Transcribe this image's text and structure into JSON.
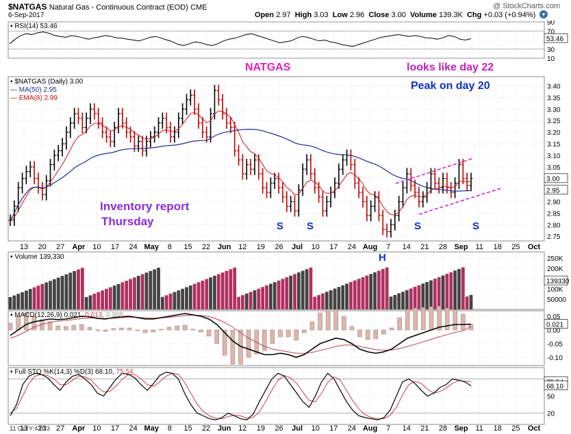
{
  "header": {
    "symbol": "$NATGAS",
    "name": "Natural Gas - Continuous Contract (EOD)",
    "exchange": "CME",
    "date": "6-Sep-2017",
    "watermark": "@ StockCharts.com",
    "open_label": "Open",
    "open": "2.97",
    "high_label": "High",
    "high": "3.03",
    "low_label": "Low",
    "low": "2.96",
    "close_label": "Close",
    "close": "3.00",
    "volume_label": "Volume",
    "volume": "139.3K",
    "chg_label": "Chg",
    "chg": "+0.03 (+0.94%)"
  },
  "annotations": {
    "natgas": "NATGAS",
    "day22": "looks like day 22",
    "peak20": "Peak on day 20",
    "inventory": "Inventory report",
    "thursday": "Thursday",
    "s": "S",
    "h": "H"
  },
  "footer": "11 Oct Y:43.13",
  "colors": {
    "up": "#000000",
    "down": "#c00000",
    "ma50": "#1c2d8a",
    "ema8": "#d01010",
    "vol_up": "#444444",
    "vol_down": "#b03060",
    "annot_magenta": "#e020c0",
    "annot_blue": "#1030c0",
    "annot_purple": "#8a2be2",
    "grid": "#d0d0d0"
  },
  "chart_data": [
    {
      "panel": "RSI",
      "type": "line",
      "label": "RSI(14) 53.46",
      "last": "53.46",
      "y_ticks": [
        "90",
        "70",
        "50",
        "30",
        "10"
      ],
      "ylim": [
        10,
        90
      ],
      "guide_lines": [
        70,
        30
      ],
      "values": [
        42,
        52,
        60,
        64,
        62,
        66,
        68,
        65,
        60,
        58,
        56,
        60,
        58,
        55,
        52,
        55,
        57,
        60,
        58,
        55,
        54,
        52,
        50,
        48,
        52,
        56,
        58,
        54,
        50,
        46,
        40,
        38,
        42,
        46,
        44,
        40,
        38,
        42,
        48,
        52,
        54,
        58,
        62,
        64,
        60,
        56,
        52,
        48,
        44,
        46,
        48,
        54,
        58,
        56,
        52,
        48,
        50,
        46,
        44,
        40,
        38,
        36,
        40,
        44,
        48,
        52,
        56,
        58,
        60,
        62,
        60,
        58,
        60,
        58,
        55,
        54,
        52,
        55,
        60,
        58,
        52,
        50,
        53
      ]
    },
    {
      "panel": "Price",
      "type": "ohlc",
      "label": "$NATGAS (Daily) 3.00",
      "legend": [
        "MA(50) 2.95",
        "EMA(8) 2.99"
      ],
      "y_ticks": [
        "3.40",
        "3.35",
        "3.30",
        "3.25",
        "3.20",
        "3.15",
        "3.10",
        "3.05",
        "3.00",
        "2.95",
        "2.90",
        "2.85",
        "2.80",
        "2.75"
      ],
      "ylim": [
        2.73,
        3.44
      ],
      "last_close": "3.00",
      "ma50_last": "2.95",
      "closes": [
        2.82,
        2.88,
        2.96,
        3.0,
        3.03,
        3.05,
        3.0,
        2.96,
        2.93,
        2.99,
        3.06,
        3.1,
        3.12,
        3.15,
        3.2,
        3.24,
        3.28,
        3.26,
        3.22,
        3.26,
        3.3,
        3.28,
        3.24,
        3.2,
        3.18,
        3.16,
        3.22,
        3.28,
        3.24,
        3.2,
        3.18,
        3.14,
        3.16,
        3.12,
        3.16,
        3.18,
        3.2,
        3.24,
        3.26,
        3.22,
        3.18,
        3.2,
        3.26,
        3.3,
        3.34,
        3.36,
        3.3,
        3.24,
        3.2,
        3.18,
        3.28,
        3.38,
        3.34,
        3.28,
        3.24,
        3.22,
        3.12,
        3.08,
        3.02,
        3.06,
        3.04,
        3.08,
        3.02,
        2.96,
        2.94,
        2.98,
        3.0,
        2.96,
        2.92,
        2.88,
        2.9,
        2.86,
        2.95,
        3.04,
        3.08,
        3.02,
        2.96,
        2.92,
        2.86,
        2.9,
        2.94,
        2.98,
        3.04,
        3.08,
        3.1,
        3.06,
        2.98,
        2.94,
        2.9,
        2.84,
        2.88,
        2.92,
        2.84,
        2.78,
        2.77,
        2.8,
        2.84,
        2.9,
        2.96,
        3.02,
        2.97,
        2.94,
        2.9,
        2.92,
        2.96,
        3.02,
        2.98,
        2.96,
        3.0,
        2.96,
        2.94,
        2.98,
        3.06,
        3.0,
        2.97,
        3.0
      ],
      "x_ticks": [
        "13",
        "20",
        "27",
        "Apr",
        "10",
        "17",
        "24",
        "May",
        "8",
        "15",
        "22",
        "Jun",
        "12",
        "19",
        "26",
        "Jul",
        "10",
        "17",
        "24",
        "Aug",
        "7",
        "14",
        "21",
        "28",
        "Sep",
        "11",
        "18",
        "25",
        "Oct"
      ]
    },
    {
      "panel": "Volume",
      "type": "bar",
      "label": "Volume 139,330",
      "last": "139330",
      "y_ticks": [
        "250K",
        "200K",
        "150K",
        "100K",
        "50000"
      ],
      "ylim": [
        0,
        280000
      ]
    },
    {
      "panel": "MACD",
      "type": "line",
      "label_main": "MACD(12,26,9)",
      "v1": "0.021",
      "v2": "0.013",
      "v3": "0.008",
      "last": "0.021",
      "y_ticks": [
        "0.05",
        "0.00",
        "-0.05",
        "-0.10"
      ],
      "ylim": [
        -0.13,
        0.07
      ],
      "macd": [
        -0.02,
        0.0,
        0.02,
        0.03,
        0.035,
        0.04,
        0.038,
        0.04,
        0.045,
        0.05,
        0.048,
        0.042,
        0.04,
        0.045,
        0.048,
        0.05,
        0.045,
        0.04,
        0.04,
        0.045,
        0.05,
        0.055,
        0.06,
        0.055,
        0.05,
        0.04,
        0.02,
        -0.01,
        -0.04,
        -0.06,
        -0.07,
        -0.08,
        -0.09,
        -0.09,
        -0.085,
        -0.09,
        -0.1,
        -0.09,
        -0.07,
        -0.05,
        -0.04,
        -0.03,
        -0.035,
        -0.05,
        -0.07,
        -0.08,
        -0.085,
        -0.08,
        -0.07,
        -0.05,
        -0.03,
        -0.02,
        -0.01,
        0.0,
        0.01,
        0.015,
        0.02,
        0.02,
        0.021
      ],
      "signal": [
        -0.03,
        -0.02,
        -0.005,
        0.01,
        0.02,
        0.028,
        0.032,
        0.035,
        0.038,
        0.042,
        0.044,
        0.043,
        0.042,
        0.043,
        0.045,
        0.047,
        0.046,
        0.044,
        0.043,
        0.044,
        0.046,
        0.049,
        0.053,
        0.054,
        0.053,
        0.049,
        0.04,
        0.027,
        0.01,
        -0.01,
        -0.03,
        -0.045,
        -0.06,
        -0.07,
        -0.075,
        -0.08,
        -0.085,
        -0.086,
        -0.082,
        -0.075,
        -0.068,
        -0.06,
        -0.055,
        -0.055,
        -0.06,
        -0.066,
        -0.072,
        -0.074,
        -0.073,
        -0.068,
        -0.06,
        -0.052,
        -0.043,
        -0.034,
        -0.025,
        -0.017,
        -0.009,
        -0.003,
        0.013
      ]
    },
    {
      "panel": "Full STO",
      "type": "line",
      "label_main": "Full STO %K(14,3) %D(3)",
      "k": "68.10",
      "d": "75.54",
      "y_ticks": [
        "80",
        "50",
        "20"
      ],
      "ylim": [
        0,
        100
      ],
      "guide_lines": [
        80,
        20
      ],
      "k_values": [
        15,
        35,
        70,
        85,
        90,
        88,
        82,
        70,
        60,
        75,
        85,
        88,
        80,
        70,
        55,
        50,
        65,
        80,
        90,
        88,
        82,
        70,
        60,
        72,
        86,
        92,
        90,
        80,
        55,
        35,
        20,
        15,
        10,
        8,
        12,
        20,
        15,
        10,
        8,
        18,
        40,
        60,
        80,
        90,
        85,
        70,
        55,
        40,
        30,
        50,
        75,
        90,
        80,
        60,
        40,
        25,
        15,
        12,
        10,
        8,
        12,
        25,
        50,
        75,
        80,
        72,
        60,
        50,
        55,
        65,
        70,
        80,
        78,
        75,
        68
      ],
      "d_values": [
        20,
        28,
        50,
        72,
        85,
        88,
        86,
        80,
        70,
        70,
        78,
        85,
        84,
        78,
        66,
        57,
        58,
        68,
        80,
        88,
        88,
        80,
        70,
        67,
        75,
        85,
        90,
        88,
        74,
        55,
        36,
        23,
        15,
        11,
        10,
        14,
        16,
        15,
        11,
        12,
        22,
        40,
        60,
        78,
        86,
        82,
        72,
        57,
        42,
        40,
        55,
        74,
        84,
        78,
        60,
        42,
        27,
        17,
        12,
        10,
        10,
        16,
        30,
        52,
        70,
        76,
        72,
        62,
        55,
        58,
        64,
        72,
        77,
        76,
        75.54
      ]
    }
  ]
}
